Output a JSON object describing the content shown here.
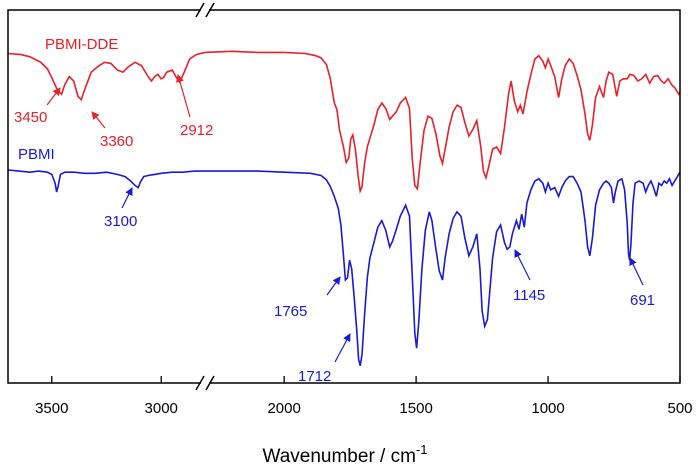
{
  "chart_data": {
    "type": "line",
    "xlabel": "Wavenumber / cm",
    "xlabel_sup": "-1",
    "xlim": [
      3700,
      500
    ],
    "axis_break": [
      2800,
      2300
    ],
    "x_ticks": [
      {
        "value": 3500,
        "label": "3500"
      },
      {
        "value": 3000,
        "label": "3000"
      },
      {
        "value": 2000,
        "label": "2000"
      },
      {
        "value": 1500,
        "label": "1500"
      },
      {
        "value": 1000,
        "label": "1000"
      },
      {
        "value": 500,
        "label": "500"
      }
    ],
    "grid": false,
    "colors": {
      "PBMI-DDE": "#e8202a",
      "PBMI": "#1a1ad6"
    },
    "series": [
      {
        "name": "PBMI-DDE",
        "color": "#e8202a",
        "points": [
          [
            3700,
            0.05
          ],
          [
            3640,
            0.06
          ],
          [
            3600,
            0.08
          ],
          [
            3550,
            0.13
          ],
          [
            3520,
            0.19
          ],
          [
            3500,
            0.27
          ],
          [
            3475,
            0.38
          ],
          [
            3455,
            0.42
          ],
          [
            3440,
            0.33
          ],
          [
            3420,
            0.26
          ],
          [
            3400,
            0.3
          ],
          [
            3380,
            0.44
          ],
          [
            3365,
            0.47
          ],
          [
            3350,
            0.38
          ],
          [
            3320,
            0.22
          ],
          [
            3290,
            0.17
          ],
          [
            3260,
            0.13
          ],
          [
            3230,
            0.14
          ],
          [
            3200,
            0.2
          ],
          [
            3175,
            0.22
          ],
          [
            3150,
            0.17
          ],
          [
            3120,
            0.13
          ],
          [
            3090,
            0.16
          ],
          [
            3060,
            0.26
          ],
          [
            3045,
            0.3
          ],
          [
            3030,
            0.26
          ],
          [
            3015,
            0.24
          ],
          [
            3000,
            0.28
          ],
          [
            2990,
            0.27
          ],
          [
            2975,
            0.22
          ],
          [
            2950,
            0.2
          ],
          [
            2930,
            0.27
          ],
          [
            2915,
            0.31
          ],
          [
            2895,
            0.22
          ],
          [
            2870,
            0.1
          ],
          [
            2840,
            0.06
          ],
          [
            2800,
            0.04
          ],
          [
            2300,
            0.04
          ],
          [
            2200,
            0.03
          ],
          [
            2100,
            0.04
          ],
          [
            2000,
            0.04
          ],
          [
            1920,
            0.05
          ],
          [
            1880,
            0.07
          ],
          [
            1860,
            0.09
          ],
          [
            1840,
            0.15
          ],
          [
            1825,
            0.28
          ],
          [
            1810,
            0.5
          ],
          [
            1800,
            0.56
          ],
          [
            1790,
            0.75
          ],
          [
            1775,
            0.9
          ],
          [
            1765,
            1.04
          ],
          [
            1755,
            1.0
          ],
          [
            1748,
            0.83
          ],
          [
            1740,
            0.79
          ],
          [
            1730,
            0.92
          ],
          [
            1720,
            1.16
          ],
          [
            1712,
            1.3
          ],
          [
            1705,
            1.26
          ],
          [
            1695,
            1.04
          ],
          [
            1685,
            0.9
          ],
          [
            1675,
            0.82
          ],
          [
            1660,
            0.7
          ],
          [
            1645,
            0.56
          ],
          [
            1630,
            0.5
          ],
          [
            1615,
            0.55
          ],
          [
            1600,
            0.65
          ],
          [
            1590,
            0.62
          ],
          [
            1575,
            0.58
          ],
          [
            1560,
            0.5
          ],
          [
            1540,
            0.45
          ],
          [
            1525,
            0.55
          ],
          [
            1515,
            1.0
          ],
          [
            1505,
            1.25
          ],
          [
            1495,
            1.28
          ],
          [
            1485,
            1.05
          ],
          [
            1470,
            0.75
          ],
          [
            1455,
            0.62
          ],
          [
            1440,
            0.64
          ],
          [
            1425,
            0.78
          ],
          [
            1410,
            0.98
          ],
          [
            1400,
            1.05
          ],
          [
            1390,
            0.92
          ],
          [
            1375,
            0.72
          ],
          [
            1360,
            0.58
          ],
          [
            1345,
            0.52
          ],
          [
            1330,
            0.54
          ],
          [
            1315,
            0.68
          ],
          [
            1300,
            0.8
          ],
          [
            1285,
            0.74
          ],
          [
            1270,
            0.66
          ],
          [
            1255,
            0.9
          ],
          [
            1245,
            1.12
          ],
          [
            1235,
            1.18
          ],
          [
            1225,
            1.08
          ],
          [
            1210,
            0.92
          ],
          [
            1195,
            0.9
          ],
          [
            1180,
            0.96
          ],
          [
            1165,
            0.72
          ],
          [
            1150,
            0.42
          ],
          [
            1140,
            0.3
          ],
          [
            1128,
            0.48
          ],
          [
            1115,
            0.58
          ],
          [
            1105,
            0.52
          ],
          [
            1095,
            0.6
          ],
          [
            1080,
            0.4
          ],
          [
            1065,
            0.24
          ],
          [
            1050,
            0.1
          ],
          [
            1035,
            0.07
          ],
          [
            1020,
            0.12
          ],
          [
            1010,
            0.18
          ],
          [
            1000,
            0.1
          ],
          [
            990,
            0.16
          ],
          [
            975,
            0.26
          ],
          [
            960,
            0.45
          ],
          [
            948,
            0.28
          ],
          [
            935,
            0.16
          ],
          [
            920,
            0.1
          ],
          [
            905,
            0.14
          ],
          [
            890,
            0.25
          ],
          [
            875,
            0.38
          ],
          [
            860,
            0.6
          ],
          [
            850,
            0.78
          ],
          [
            842,
            0.84
          ],
          [
            832,
            0.7
          ],
          [
            820,
            0.45
          ],
          [
            805,
            0.35
          ],
          [
            790,
            0.45
          ],
          [
            780,
            0.3
          ],
          [
            770,
            0.22
          ],
          [
            755,
            0.24
          ],
          [
            740,
            0.44
          ],
          [
            728,
            0.3
          ],
          [
            715,
            0.28
          ],
          [
            700,
            0.28
          ],
          [
            690,
            0.24
          ],
          [
            675,
            0.25
          ],
          [
            660,
            0.3
          ],
          [
            645,
            0.28
          ],
          [
            630,
            0.24
          ],
          [
            615,
            0.32
          ],
          [
            600,
            0.26
          ],
          [
            585,
            0.25
          ],
          [
            570,
            0.3
          ],
          [
            560,
            0.32
          ],
          [
            545,
            0.28
          ],
          [
            530,
            0.34
          ],
          [
            520,
            0.36
          ],
          [
            505,
            0.42
          ],
          [
            500,
            0.4
          ]
        ]
      },
      {
        "name": "PBMI",
        "color": "#1a1ad6",
        "points": [
          [
            3700,
            0.0
          ],
          [
            3650,
            0.01
          ],
          [
            3600,
            0.02
          ],
          [
            3560,
            0.01
          ],
          [
            3520,
            0.02
          ],
          [
            3500,
            0.04
          ],
          [
            3485,
            0.12
          ],
          [
            3478,
            0.2
          ],
          [
            3470,
            0.14
          ],
          [
            3460,
            0.04
          ],
          [
            3440,
            0.02
          ],
          [
            3400,
            0.02
          ],
          [
            3350,
            0.03
          ],
          [
            3300,
            0.03
          ],
          [
            3250,
            0.02
          ],
          [
            3200,
            0.04
          ],
          [
            3165,
            0.06
          ],
          [
            3140,
            0.1
          ],
          [
            3120,
            0.14
          ],
          [
            3105,
            0.16
          ],
          [
            3095,
            0.11
          ],
          [
            3080,
            0.06
          ],
          [
            3060,
            0.05
          ],
          [
            3030,
            0.04
          ],
          [
            3000,
            0.03
          ],
          [
            2950,
            0.02
          ],
          [
            2900,
            0.02
          ],
          [
            2850,
            0.01
          ],
          [
            2800,
            0.01
          ],
          [
            2300,
            0.01
          ],
          [
            2200,
            0.01
          ],
          [
            2100,
            0.01
          ],
          [
            2000,
            0.02
          ],
          [
            1900,
            0.03
          ],
          [
            1860,
            0.05
          ],
          [
            1840,
            0.09
          ],
          [
            1825,
            0.15
          ],
          [
            1810,
            0.24
          ],
          [
            1795,
            0.35
          ],
          [
            1785,
            0.5
          ],
          [
            1775,
            0.78
          ],
          [
            1768,
            1.0
          ],
          [
            1760,
            0.98
          ],
          [
            1752,
            0.82
          ],
          [
            1744,
            0.9
          ],
          [
            1735,
            1.15
          ],
          [
            1725,
            1.45
          ],
          [
            1718,
            1.72
          ],
          [
            1712,
            1.78
          ],
          [
            1705,
            1.68
          ],
          [
            1695,
            1.3
          ],
          [
            1685,
            0.98
          ],
          [
            1675,
            0.8
          ],
          [
            1660,
            0.66
          ],
          [
            1645,
            0.52
          ],
          [
            1630,
            0.46
          ],
          [
            1615,
            0.55
          ],
          [
            1600,
            0.7
          ],
          [
            1590,
            0.65
          ],
          [
            1575,
            0.54
          ],
          [
            1560,
            0.42
          ],
          [
            1540,
            0.32
          ],
          [
            1525,
            0.42
          ],
          [
            1515,
            0.95
          ],
          [
            1505,
            1.48
          ],
          [
            1498,
            1.62
          ],
          [
            1490,
            1.38
          ],
          [
            1478,
            0.9
          ],
          [
            1465,
            0.55
          ],
          [
            1450,
            0.38
          ],
          [
            1440,
            0.46
          ],
          [
            1425,
            0.72
          ],
          [
            1412,
            0.92
          ],
          [
            1400,
            1.0
          ],
          [
            1390,
            0.8
          ],
          [
            1375,
            0.58
          ],
          [
            1360,
            0.44
          ],
          [
            1345,
            0.38
          ],
          [
            1330,
            0.42
          ],
          [
            1315,
            0.62
          ],
          [
            1300,
            0.78
          ],
          [
            1285,
            0.7
          ],
          [
            1270,
            0.58
          ],
          [
            1258,
            0.9
          ],
          [
            1250,
            1.28
          ],
          [
            1240,
            1.42
          ],
          [
            1230,
            1.36
          ],
          [
            1220,
            1.08
          ],
          [
            1210,
            0.8
          ],
          [
            1195,
            0.56
          ],
          [
            1180,
            0.5
          ],
          [
            1165,
            0.66
          ],
          [
            1155,
            0.72
          ],
          [
            1145,
            0.7
          ],
          [
            1135,
            0.58
          ],
          [
            1120,
            0.46
          ],
          [
            1110,
            0.54
          ],
          [
            1100,
            0.4
          ],
          [
            1090,
            0.52
          ],
          [
            1080,
            0.3
          ],
          [
            1065,
            0.18
          ],
          [
            1050,
            0.1
          ],
          [
            1035,
            0.08
          ],
          [
            1020,
            0.12
          ],
          [
            1010,
            0.2
          ],
          [
            1000,
            0.12
          ],
          [
            990,
            0.18
          ],
          [
            975,
            0.16
          ],
          [
            960,
            0.24
          ],
          [
            948,
            0.16
          ],
          [
            935,
            0.1
          ],
          [
            920,
            0.06
          ],
          [
            905,
            0.06
          ],
          [
            890,
            0.12
          ],
          [
            875,
            0.2
          ],
          [
            860,
            0.46
          ],
          [
            850,
            0.7
          ],
          [
            842,
            0.78
          ],
          [
            832,
            0.62
          ],
          [
            820,
            0.32
          ],
          [
            805,
            0.18
          ],
          [
            790,
            0.12
          ],
          [
            780,
            0.1
          ],
          [
            770,
            0.12
          ],
          [
            760,
            0.16
          ],
          [
            752,
            0.3
          ],
          [
            745,
            0.2
          ],
          [
            735,
            0.1
          ],
          [
            720,
            0.08
          ],
          [
            710,
            0.18
          ],
          [
            700,
            0.48
          ],
          [
            695,
            0.76
          ],
          [
            691,
            0.82
          ],
          [
            686,
            0.68
          ],
          [
            678,
            0.3
          ],
          [
            670,
            0.12
          ],
          [
            655,
            0.1
          ],
          [
            640,
            0.12
          ],
          [
            630,
            0.2
          ],
          [
            620,
            0.14
          ],
          [
            610,
            0.1
          ],
          [
            600,
            0.16
          ],
          [
            590,
            0.24
          ],
          [
            580,
            0.12
          ],
          [
            570,
            0.14
          ],
          [
            560,
            0.1
          ],
          [
            550,
            0.12
          ],
          [
            540,
            0.08
          ],
          [
            530,
            0.14
          ],
          [
            520,
            0.1
          ],
          [
            510,
            0.06
          ],
          [
            500,
            0.02
          ]
        ]
      }
    ],
    "annotations": [
      {
        "series": "PBMI-DDE",
        "text": "PBMI-DDE",
        "kind": "label"
      },
      {
        "series": "PBMI",
        "text": "PBMI",
        "kind": "label"
      },
      {
        "series": "PBMI-DDE",
        "text": "3450",
        "x": 3450
      },
      {
        "series": "PBMI-DDE",
        "text": "3360",
        "x": 3360
      },
      {
        "series": "PBMI-DDE",
        "text": "2912",
        "x": 2912
      },
      {
        "series": "PBMI",
        "text": "3100",
        "x": 3100
      },
      {
        "series": "PBMI",
        "text": "1765",
        "x": 1765
      },
      {
        "series": "PBMI",
        "text": "1712",
        "x": 1712
      },
      {
        "series": "PBMI",
        "text": "1145",
        "x": 1145
      },
      {
        "series": "PBMI",
        "text": "691",
        "x": 691
      }
    ]
  }
}
